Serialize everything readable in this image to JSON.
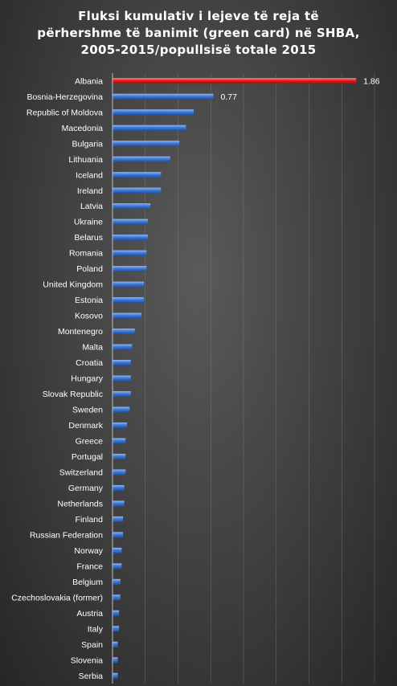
{
  "chart_data": {
    "type": "bar",
    "orientation": "horizontal",
    "title_lines": [
      "Fluksi kumulativ i lejeve të reja të",
      "përhershme të banimit (green card) në SHBA,",
      "2005-2015/popullsisë totale 2015"
    ],
    "categories": [
      "Albania",
      "Bosnia-Herzegovina",
      "Republic of Moldova",
      "Macedonia",
      "Bulgaria",
      "Lithuania",
      "Iceland",
      "Ireland",
      "Latvia",
      "Ukraine",
      "Belarus",
      "Romania",
      "Poland",
      "United Kingdom",
      "Estonia",
      "Kosovo",
      "Montenegro",
      "Malta",
      "Croatia",
      "Hungary",
      "Slovak Republic",
      "Sweden",
      "Denmark",
      "Greece",
      "Portugal",
      "Switzerland",
      "Germany",
      "Netherlands",
      "Finland",
      "Russian Federation",
      "Norway",
      "France",
      "Belgium",
      "Czechoslovakia (former)",
      "Austria",
      "Italy",
      "Spain",
      "Slovenia",
      "Serbia"
    ],
    "values": [
      1.86,
      0.77,
      0.62,
      0.56,
      0.51,
      0.44,
      0.37,
      0.37,
      0.29,
      0.27,
      0.27,
      0.26,
      0.26,
      0.24,
      0.24,
      0.22,
      0.17,
      0.15,
      0.14,
      0.14,
      0.14,
      0.13,
      0.11,
      0.1,
      0.1,
      0.1,
      0.09,
      0.09,
      0.08,
      0.08,
      0.07,
      0.07,
      0.06,
      0.06,
      0.05,
      0.05,
      0.04,
      0.04,
      0.04
    ],
    "data_labels": [
      {
        "category": "Albania",
        "text": "1.86"
      },
      {
        "category": "Bosnia-Herzegovina",
        "text": "0.77"
      }
    ],
    "xlim": [
      0,
      2.0
    ],
    "grid": true,
    "colors": {
      "highlight": "#e01b1b",
      "bar": "#3f7ad6",
      "gridline": "#8a8a8a",
      "axis": "#bdbdbd",
      "text": "#ffffff"
    }
  }
}
